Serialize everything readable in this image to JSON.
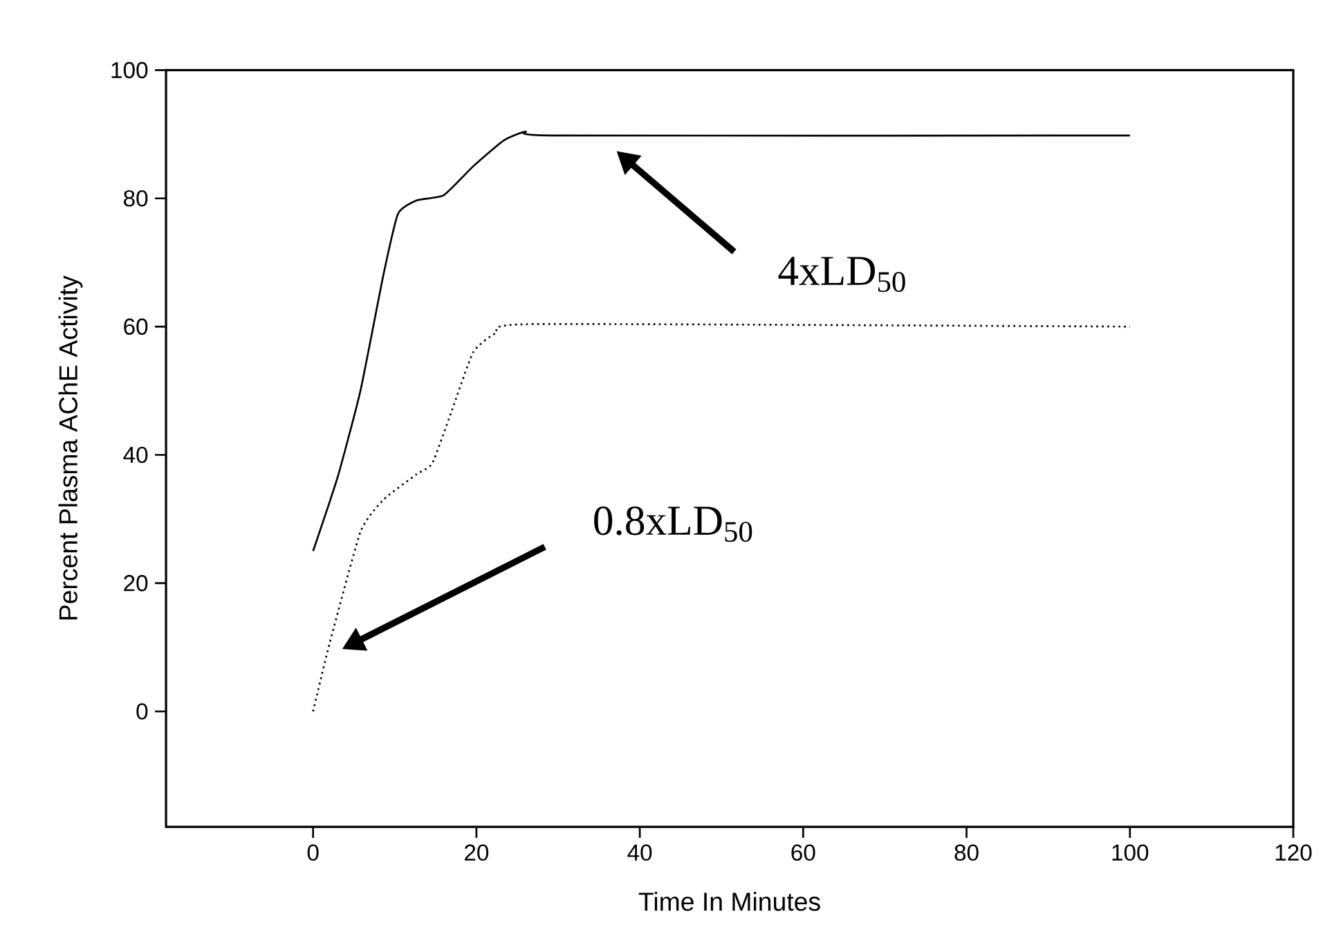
{
  "chart_data": {
    "type": "line",
    "xlabel": "Time In Minutes",
    "ylabel": "Percent Plasma AChE Activity",
    "xlim": [
      -18,
      120
    ],
    "xticks": [
      0,
      20,
      40,
      60,
      80,
      100,
      120
    ],
    "ylim": [
      -18,
      100
    ],
    "yticks": [
      0,
      20,
      40,
      60,
      80,
      100
    ],
    "marker": "none",
    "grid": false,
    "series": [
      {
        "color": "#000000",
        "line_style": "solid",
        "x": [
          0,
          3,
          5.8,
          8.6,
          10.4,
          12.7,
          16,
          19.6,
          23.3,
          26,
          29.8,
          100
        ],
        "values": [
          25,
          36.5,
          50,
          68,
          77.6,
          79.7,
          80.5,
          85,
          89,
          90.4,
          89.8,
          89.8
        ]
      },
      {
        "color": "#000000",
        "line_style": "dotted",
        "x": [
          0,
          2,
          5.8,
          8.6,
          12.7,
          14.6,
          16.9,
          19.6,
          22.4,
          27,
          100
        ],
        "values": [
          0,
          10.5,
          28,
          33,
          37,
          38.7,
          46.6,
          56,
          59,
          60.4,
          60
        ]
      }
    ],
    "annotations": [
      "4xLD$_{50}$",
      "0.8xLD$_{50}$"
    ]
  }
}
